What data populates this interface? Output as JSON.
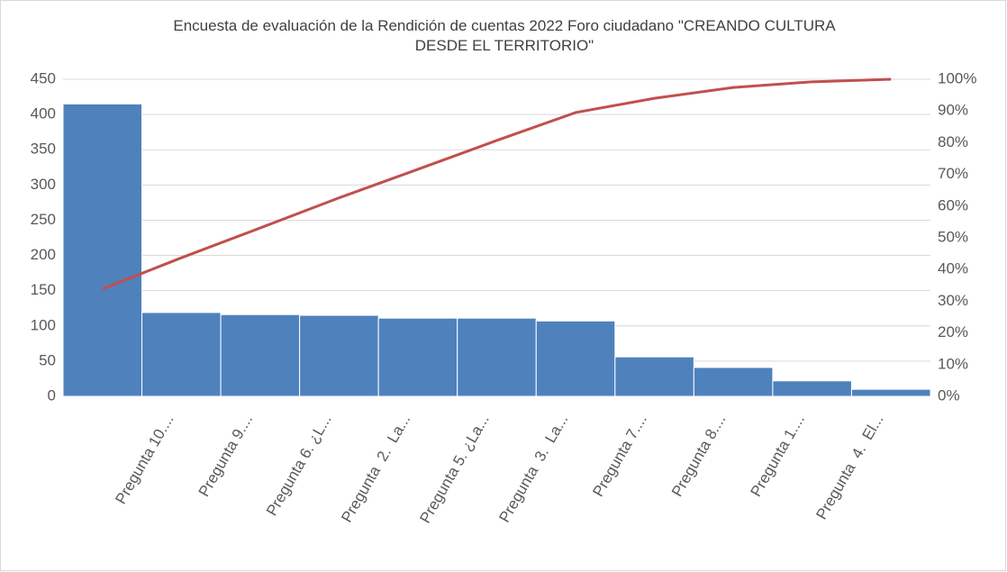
{
  "chart_data": {
    "type": "pareto",
    "title": "Encuesta de evaluación de la Rendición de cuentas 2022 Foro ciudadano \"CREANDO CULTURA DESDE EL TERRITORIO\"",
    "categories": [
      null,
      "Pregunta 10....",
      "Pregunta 9....",
      "Pregunta 6. ¿L...",
      "Pregunta  2.  La...",
      "Pregunta 5. ¿La...",
      "Pregunta  3.  La...",
      "Pregunta 7....",
      "Pregunta 8....",
      "Pregunta 1....",
      "Pregunta  4.  El..."
    ],
    "series": [
      {
        "type": "bar",
        "color": "#4f81bd",
        "values": [
          415,
          119,
          116,
          115,
          111,
          111,
          107,
          56,
          41,
          22,
          10
        ]
      },
      {
        "type": "line",
        "axis": "y2",
        "color": "#c0504d",
        "values": [
          33.9,
          43.7,
          53.1,
          62.6,
          71.6,
          80.7,
          89.5,
          94.0,
          97.4,
          99.2,
          100
        ]
      }
    ],
    "ylim": [
      0,
      450
    ],
    "yticks": [
      0,
      50,
      100,
      150,
      200,
      250,
      300,
      350,
      400,
      450
    ],
    "y2lim": [
      0,
      100
    ],
    "y2ticks": [
      {
        "value": 0,
        "label": "0%"
      },
      {
        "value": 10,
        "label": "10%"
      },
      {
        "value": 20,
        "label": "20%"
      },
      {
        "value": 30,
        "label": "30%"
      },
      {
        "value": 40,
        "label": "40%"
      },
      {
        "value": 50,
        "label": "50%"
      },
      {
        "value": 60,
        "label": "60%"
      },
      {
        "value": 70,
        "label": "70%"
      },
      {
        "value": 80,
        "label": "80%"
      },
      {
        "value": 90,
        "label": "90%"
      },
      {
        "value": 100,
        "label": "100%"
      }
    ],
    "grid": true
  }
}
